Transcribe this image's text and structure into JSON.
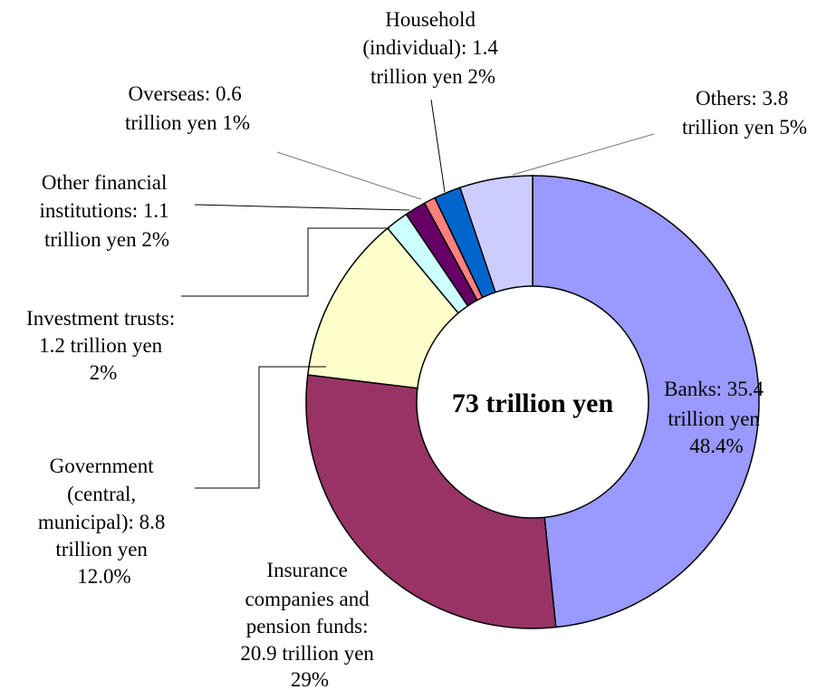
{
  "chart_data": {
    "type": "pie",
    "center_label": "73 trillion yen",
    "slices": [
      {
        "name": "Banks",
        "value": 35.4,
        "percent": 48.4,
        "color": "#9999ff",
        "label_lines": [
          "Banks: 35.4",
          "trillion yen",
          "48.4%"
        ]
      },
      {
        "name": "Insurance companies and pension funds",
        "value": 20.9,
        "percent": 29,
        "color": "#993366",
        "label_lines": [
          "Insurance",
          "companies and",
          "pension funds:",
          "20.9 trillion yen",
          "29%"
        ]
      },
      {
        "name": "Government (central, municipal)",
        "value": 8.8,
        "percent": 12.0,
        "color": "#ffffcc",
        "label_lines": [
          "Government",
          "(central,",
          "municipal): 8.8",
          "trillion yen",
          "12.0%"
        ]
      },
      {
        "name": "Investment trusts",
        "value": 1.2,
        "percent": 2,
        "color": "#ccffff",
        "label_lines": [
          "Investment trusts:",
          "1.2 trillion yen",
          "2%"
        ]
      },
      {
        "name": "Other financial institutions",
        "value": 1.1,
        "percent": 2,
        "color": "#660066",
        "label_lines": [
          "Other financial",
          "institutions: 1.1",
          "trillion yen 2%"
        ]
      },
      {
        "name": "Overseas",
        "value": 0.6,
        "percent": 1,
        "color": "#ff8080",
        "label_lines": [
          "Overseas: 0.6",
          "trillion yen 1%"
        ]
      },
      {
        "name": "Household (individual)",
        "value": 1.4,
        "percent": 2,
        "color": "#0066cc",
        "label_lines": [
          "Household",
          "(individual): 1.4",
          "trillion yen 2%"
        ]
      },
      {
        "name": "Others",
        "value": 3.8,
        "percent": 5,
        "color": "#ccccff",
        "label_lines": [
          "Others: 3.8",
          "trillion yen 5%"
        ]
      }
    ]
  }
}
